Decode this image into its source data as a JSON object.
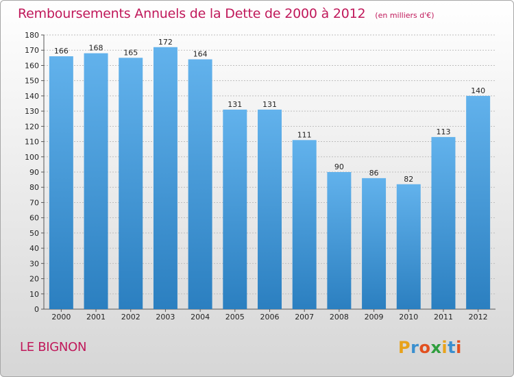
{
  "title": {
    "main": "Remboursements Annuels de la Dette de 2000 à 2012",
    "unit": "(en milliers d'€)"
  },
  "location": "LE BIGNON",
  "logo": {
    "text": "Proxiti",
    "colors": [
      "#e8a21a",
      "#3a8fcf",
      "#e2501f",
      "#2f9e3e"
    ]
  },
  "colors": {
    "title": "#c0185a",
    "bar_top": "#62b2ec",
    "bar_bottom": "#2b7fc0",
    "grid": "#bdbdbd",
    "axis": "#555555"
  },
  "chart_data": {
    "type": "bar",
    "title": "Remboursements Annuels de la Dette de 2000 à 2012",
    "ylabel": "en milliers d'€",
    "xlabel": "",
    "categories": [
      "2000",
      "2001",
      "2002",
      "2003",
      "2004",
      "2005",
      "2006",
      "2007",
      "2008",
      "2009",
      "2010",
      "2011",
      "2012"
    ],
    "values": [
      166,
      168,
      165,
      172,
      164,
      131,
      131,
      111,
      90,
      86,
      82,
      113,
      140
    ],
    "ylim": [
      0,
      180
    ],
    "ytick_step": 10,
    "grid": true
  }
}
